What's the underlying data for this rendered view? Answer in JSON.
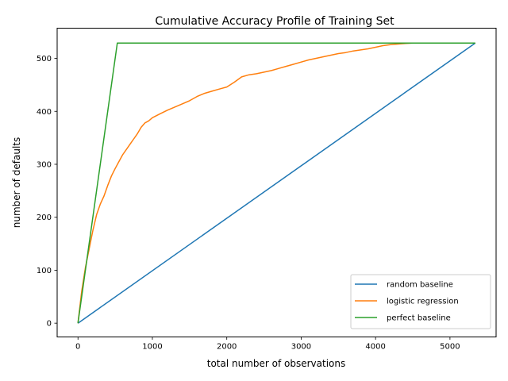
{
  "chart_data": {
    "type": "line",
    "title": "Cumulative Accuracy Profile of Training Set",
    "xlabel": "total number of observations",
    "ylabel": "number of defaults",
    "xlim": [
      -280,
      5620
    ],
    "ylim": [
      -26,
      557
    ],
    "xticks": [
      0,
      1000,
      2000,
      3000,
      4000,
      5000
    ],
    "yticks": [
      0,
      100,
      200,
      300,
      400,
      500
    ],
    "grid": false,
    "legend_position": "lower right",
    "series": [
      {
        "name": "random baseline",
        "color": "#1f77b4",
        "x": [
          0,
          5340
        ],
        "y": [
          0,
          529
        ]
      },
      {
        "name": "logistic regression",
        "color": "#ff7f0e",
        "x": [
          0,
          50,
          100,
          150,
          200,
          250,
          300,
          350,
          400,
          450,
          500,
          550,
          600,
          650,
          700,
          750,
          800,
          850,
          900,
          950,
          1000,
          1100,
          1200,
          1300,
          1400,
          1500,
          1600,
          1700,
          1800,
          1900,
          2000,
          2100,
          2200,
          2300,
          2400,
          2500,
          2600,
          2700,
          2800,
          2900,
          3000,
          3100,
          3200,
          3300,
          3400,
          3500,
          3600,
          3700,
          3800,
          3900,
          4000,
          4100,
          4200,
          4300,
          4400,
          4500,
          5340
        ],
        "y": [
          0,
          60,
          105,
          140,
          175,
          205,
          225,
          240,
          260,
          278,
          292,
          305,
          318,
          328,
          338,
          348,
          358,
          370,
          378,
          382,
          388,
          395,
          402,
          408,
          414,
          420,
          428,
          434,
          438,
          442,
          446,
          455,
          465,
          469,
          471,
          474,
          477,
          481,
          485,
          489,
          493,
          497,
          500,
          503,
          506,
          509,
          511,
          514,
          516,
          518,
          521,
          524,
          526,
          527,
          528,
          529,
          529
        ]
      },
      {
        "name": "perfect baseline",
        "color": "#2ca02c",
        "x": [
          0,
          529,
          5340
        ],
        "y": [
          0,
          529,
          529
        ]
      }
    ]
  }
}
